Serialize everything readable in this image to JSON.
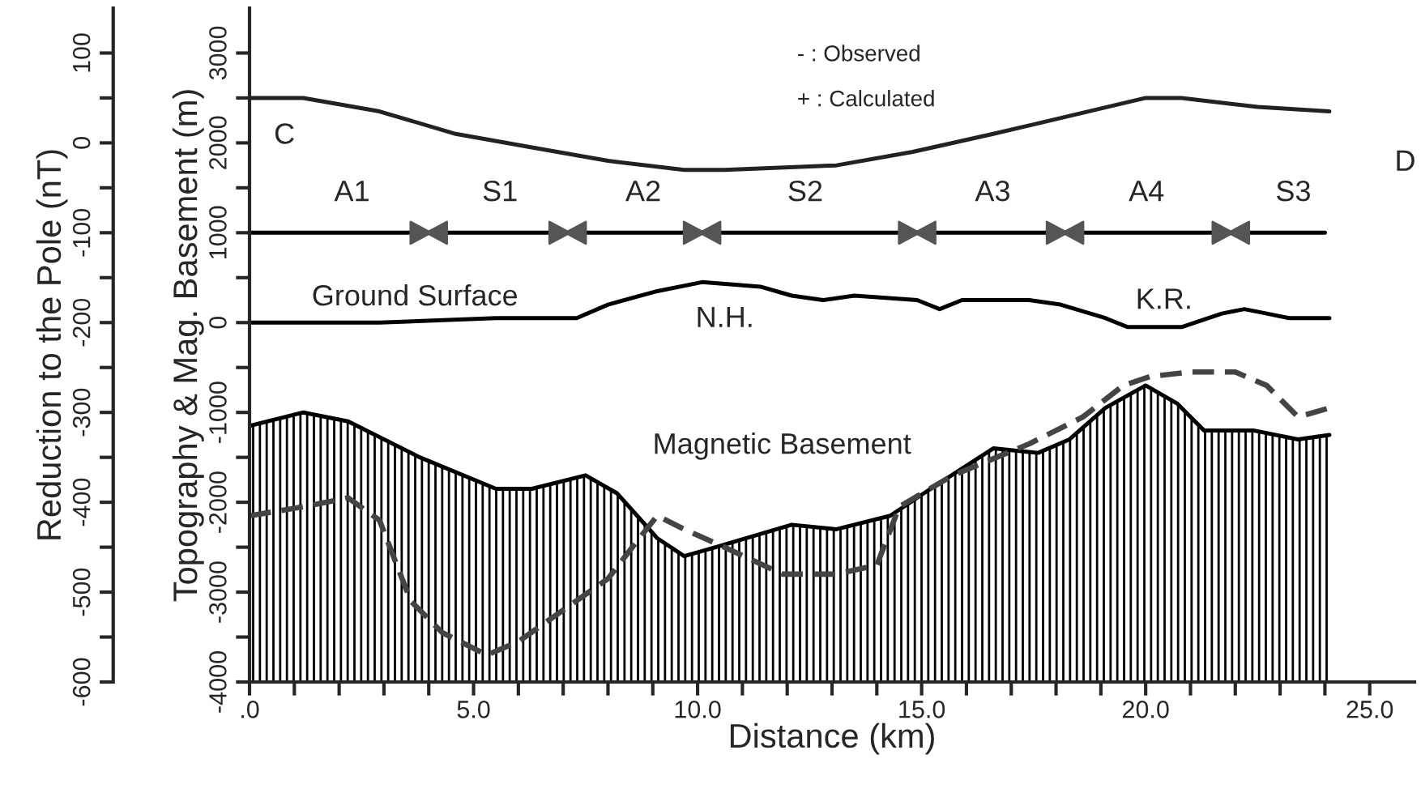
{
  "chart_data": {
    "type": "line",
    "xlabel": "Distance (km)",
    "ylabel": "Topography & Mag. Basement (m)",
    "y2label": "Reduction to the Pole (nT)",
    "xlim": [
      0,
      26
    ],
    "xticks": [
      {
        "value": 0,
        "label": ".0"
      },
      {
        "value": 1,
        "label": null
      },
      {
        "value": 2,
        "label": null
      },
      {
        "value": 3,
        "label": null
      },
      {
        "value": 4,
        "label": null
      },
      {
        "value": 5,
        "label": "5.0"
      },
      {
        "value": 6,
        "label": null
      },
      {
        "value": 7,
        "label": null
      },
      {
        "value": 8,
        "label": null
      },
      {
        "value": 9,
        "label": null
      },
      {
        "value": 10,
        "label": "10.0"
      },
      {
        "value": 11,
        "label": null
      },
      {
        "value": 12,
        "label": null
      },
      {
        "value": 13,
        "label": null
      },
      {
        "value": 14,
        "label": null
      },
      {
        "value": 15,
        "label": "15.0"
      },
      {
        "value": 16,
        "label": null
      },
      {
        "value": 17,
        "label": null
      },
      {
        "value": 18,
        "label": null
      },
      {
        "value": 19,
        "label": null
      },
      {
        "value": 20,
        "label": "20.0"
      },
      {
        "value": 21,
        "label": null
      },
      {
        "value": 22,
        "label": null
      },
      {
        "value": 23,
        "label": null
      },
      {
        "value": 24,
        "label": null
      },
      {
        "value": 25,
        "label": "25.0"
      }
    ],
    "ylim": [
      -4000,
      3500
    ],
    "yticks": [
      -4000,
      {
        "value": -3500,
        "label": null
      },
      -3000,
      {
        "value": -2500,
        "label": null
      },
      -2000,
      {
        "value": -1500,
        "label": null
      },
      -1000,
      {
        "value": -500,
        "label": null
      },
      0,
      {
        "value": 500,
        "label": null
      },
      1000,
      {
        "value": 1500,
        "label": null
      },
      2000,
      {
        "value": 2500,
        "label": null
      },
      3000
    ],
    "y2lim": [
      -600,
      150
    ],
    "y2ticks": [
      -600,
      {
        "value": -550,
        "label": null
      },
      -500,
      {
        "value": -450,
        "label": null
      },
      -400,
      {
        "value": -350,
        "label": null
      },
      -300,
      {
        "value": -250,
        "label": null
      },
      -200,
      {
        "value": -150,
        "label": null
      },
      -100,
      {
        "value": -50,
        "label": null
      },
      0,
      {
        "value": 50,
        "label": null
      },
      100
    ],
    "series": [
      {
        "color": "#000000",
        "x": [
          0.0,
          1.2,
          2.2,
          3.8,
          5.5,
          6.3,
          7.5,
          8.2,
          9.1,
          9.7,
          10.4,
          12.1,
          13.1,
          14.3,
          15.2,
          16.6,
          17.6,
          18.3,
          19.1,
          20.0,
          20.7,
          21.3,
          22.4,
          23.4,
          24.1
        ],
        "values": [
          -1150,
          -1000,
          -1100,
          -1500,
          -1850,
          -1850,
          -1700,
          -1900,
          -2400,
          -2600,
          -2500,
          -2250,
          -2300,
          -2150,
          -1850,
          -1400,
          -1450,
          -1300,
          -950,
          -700,
          -900,
          -1200,
          -1200,
          -1300,
          -1250
        ],
        "upper": [
          -1150,
          -1000,
          -1100,
          -1500,
          -1850,
          -1850,
          -1700,
          -1900,
          -2400,
          -2600,
          -2500,
          -2250,
          -2300,
          -2150,
          -1850,
          -1400,
          -1450,
          -1300,
          -950,
          -700,
          -900,
          -1200,
          -1200,
          -1300,
          -1250
        ],
        "lower": [
          -4000,
          -4000,
          -4000,
          -4000,
          -4000,
          -4000,
          -4000,
          -4000,
          -4000,
          -4000,
          -4000,
          -4000,
          -4000,
          -4000,
          -4000,
          -4000,
          -4000,
          -4000,
          -4000,
          -4000,
          -4000,
          -4000,
          -4000,
          -4000,
          -4000
        ]
      },
      {
        "color": "#444444",
        "line_style": "dashed",
        "x": [
          0.0,
          1.2,
          2.2,
          2.9,
          3.6,
          4.3,
          5.3,
          6.0,
          7.0,
          8.0,
          8.7,
          9.1,
          9.7,
          10.6,
          11.9,
          13.1,
          14.0,
          14.5,
          15.7,
          17.4,
          18.6,
          19.5,
          20.1,
          21.0,
          22.0,
          22.7,
          23.4,
          24.1
        ],
        "values": [
          -2150,
          -2050,
          -1950,
          -2200,
          -3100,
          -3450,
          -3700,
          -3550,
          -3200,
          -2850,
          -2400,
          -2150,
          -2300,
          -2500,
          -2800,
          -2800,
          -2700,
          -2050,
          -1700,
          -1350,
          -1050,
          -700,
          -600,
          -550,
          -550,
          -700,
          -1050,
          -950
        ]
      },
      {
        "color": "#000000",
        "x": [
          0.0,
          2.9,
          5.5,
          7.3,
          8.0,
          9.1,
          10.1,
          11.4,
          12.1,
          12.8,
          13.5,
          14.9,
          15.4,
          15.9,
          17.4,
          18.1,
          19.1,
          19.6,
          20.8,
          21.7,
          22.2,
          22.7,
          23.2,
          24.1
        ],
        "values": [
          0,
          0,
          50,
          50,
          200,
          350,
          450,
          400,
          300,
          250,
          300,
          250,
          150,
          250,
          250,
          200,
          50,
          -50,
          -50,
          100,
          150,
          100,
          50,
          50
        ]
      },
      {
        "color": "#000000",
        "x": [
          0,
          24.0
        ],
        "values": [
          1000,
          1000
        ]
      },
      {
        "type": "scatter",
        "color": "#555555",
        "marker": "triangle",
        "x": [
          4.0,
          7.1,
          10.1,
          14.9,
          18.2,
          21.9
        ],
        "values": [
          1000,
          1000,
          1000,
          1000,
          1000,
          1000
        ]
      },
      {
        "color": "#222222",
        "axis": "y2",
        "x": [
          0.0,
          1.2,
          2.9,
          4.6,
          6.3,
          8.0,
          9.7,
          10.6,
          13.1,
          14.8,
          16.6,
          18.3,
          20.0,
          20.8,
          22.5,
          24.1
        ],
        "values": [
          50,
          50,
          35,
          10,
          -5,
          -20,
          -30,
          -30,
          -25,
          -10,
          10,
          30,
          50,
          50,
          40,
          35
        ]
      }
    ],
    "annotations": [
      "- : Observed",
      "+ : Calculated",
      "C",
      "D",
      "A1",
      "S1",
      "A2",
      "S2",
      "A3",
      "A4",
      "S3",
      "Ground Surface",
      "N.H.",
      "K.R.",
      "Magnetic Basement"
    ]
  }
}
